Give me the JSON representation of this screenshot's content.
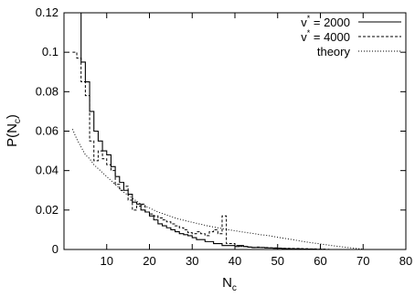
{
  "chart_data": {
    "type": "line",
    "xlabel_main": "N",
    "xlabel_sub": "c",
    "ylabel_main": "P(N",
    "ylabel_sub": "c",
    "ylabel_close": ")",
    "xlim": [
      0,
      80
    ],
    "ylim": [
      0,
      0.12
    ],
    "x_ticks": [
      10,
      20,
      30,
      40,
      50,
      60,
      70,
      80
    ],
    "y_ticks": [
      0,
      0.02,
      0.04,
      0.06,
      0.08,
      0.1,
      0.12
    ],
    "x_tick_labels": [
      "10",
      "20",
      "30",
      "40",
      "50",
      "60",
      "70",
      "80"
    ],
    "y_tick_labels": [
      "0",
      "0.02",
      "0.04",
      "0.06",
      "0.08",
      "0.1",
      "0.12"
    ],
    "legend_position": "top-right",
    "series": [
      {
        "name_main": "v",
        "name_sup": "*",
        "name_rest": " = 2000",
        "style": "solid",
        "x": [
          2,
          3,
          4,
          5,
          6,
          7,
          8,
          9,
          10,
          11,
          12,
          13,
          14,
          15,
          16,
          17,
          18,
          19,
          20,
          21,
          22,
          23,
          24,
          25,
          26,
          27,
          28,
          29,
          30,
          31,
          32,
          33,
          34,
          35,
          36,
          37,
          38,
          39,
          40,
          41,
          42,
          43,
          44,
          45,
          46,
          47,
          48,
          49,
          50,
          51,
          52,
          53,
          54,
          55,
          56,
          57,
          58,
          59,
          60,
          61,
          62
        ],
        "values": [
          0.12,
          0.12,
          0.095,
          0.085,
          0.07,
          0.06,
          0.055,
          0.05,
          0.048,
          0.042,
          0.037,
          0.034,
          0.03,
          0.028,
          0.024,
          0.023,
          0.02,
          0.019,
          0.017,
          0.015,
          0.013,
          0.012,
          0.011,
          0.01,
          0.009,
          0.008,
          0.0075,
          0.007,
          0.006,
          0.005,
          0.005,
          0.004,
          0.004,
          0.003,
          0.003,
          0.002,
          0.002,
          0.002,
          0.0015,
          0.002,
          0.0015,
          0.0012,
          0.001,
          0.001,
          0.001,
          0.0008,
          0.0008,
          0.0006,
          0.0006,
          0.0005,
          0.0004,
          0.0004,
          0.0003,
          0.0003,
          0.0002,
          0.0002,
          0.0002,
          0.0001,
          0.0001,
          0.0,
          0.0
        ]
      },
      {
        "name_main": "v",
        "name_sup": "*",
        "name_rest": " = 4000",
        "style": "dashed",
        "x": [
          2,
          3,
          4,
          5,
          6,
          7,
          8,
          9,
          10,
          11,
          12,
          13,
          14,
          15,
          16,
          17,
          18,
          19,
          20,
          21,
          22,
          23,
          24,
          25,
          26,
          27,
          28,
          29,
          30,
          31,
          32,
          33,
          34,
          35,
          36,
          37,
          38,
          39,
          40,
          41,
          42,
          43,
          44,
          45,
          46,
          47,
          48,
          49,
          50,
          51,
          52,
          53,
          54,
          55,
          56,
          57,
          58,
          59,
          60,
          61,
          62
        ],
        "values": [
          0.1,
          0.097,
          0.085,
          0.078,
          0.055,
          0.045,
          0.05,
          0.046,
          0.043,
          0.04,
          0.033,
          0.03,
          0.032,
          0.025,
          0.02,
          0.022,
          0.023,
          0.019,
          0.018,
          0.017,
          0.016,
          0.015,
          0.014,
          0.013,
          0.012,
          0.011,
          0.01,
          0.0085,
          0.008,
          0.009,
          0.008,
          0.007,
          0.009,
          0.01,
          0.008,
          0.017,
          0.003,
          0.003,
          0.002,
          0.0015,
          0.0015,
          0.0012,
          0.001,
          0.0012,
          0.001,
          0.001,
          0.0008,
          0.0008,
          0.0007,
          0.0006,
          0.0006,
          0.0005,
          0.0005,
          0.0004,
          0.0004,
          0.0003,
          0.0003,
          0.0002,
          0.0002,
          0.0001,
          0.0
        ]
      },
      {
        "name_main": "theory",
        "name_sup": "",
        "name_rest": "",
        "style": "dotted",
        "x": [
          2,
          3,
          4,
          5,
          6,
          7,
          8,
          9,
          10,
          12,
          14,
          16,
          18,
          20,
          22,
          24,
          26,
          28,
          30,
          32,
          34,
          36,
          38,
          40,
          42,
          44,
          46,
          48,
          50,
          52,
          54,
          56,
          58,
          60,
          62,
          64,
          66,
          68,
          70
        ],
        "values": [
          0.061,
          0.056,
          0.052,
          0.048,
          0.046,
          0.043,
          0.041,
          0.039,
          0.037,
          0.033,
          0.029,
          0.026,
          0.023,
          0.021,
          0.019,
          0.0175,
          0.016,
          0.0148,
          0.0138,
          0.0128,
          0.0118,
          0.011,
          0.0102,
          0.0095,
          0.0088,
          0.0082,
          0.0075,
          0.007,
          0.0062,
          0.0055,
          0.0048,
          0.004,
          0.0034,
          0.0028,
          0.0022,
          0.0016,
          0.0011,
          0.0006,
          0.0002
        ]
      }
    ]
  }
}
